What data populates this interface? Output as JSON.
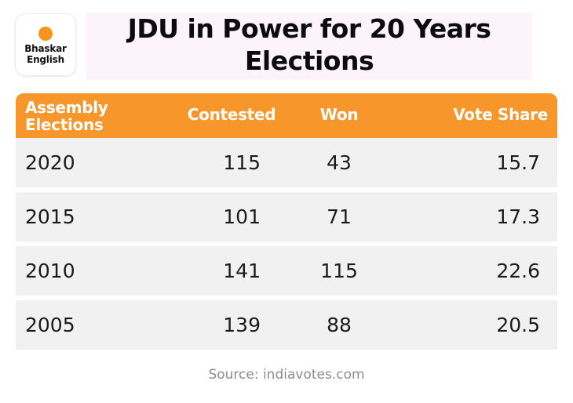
{
  "logo": {
    "line1": "Bhaskar",
    "line2": "English"
  },
  "title": {
    "line1": "JDU in Power for 20 Years",
    "line2": "Elections"
  },
  "chart_data": {
    "type": "table",
    "title": "JDU in Power for 20 Years Elections",
    "columns": {
      "elections_line1": "Assembly",
      "elections_line2": "Elections",
      "contested": "Contested",
      "won": "Won",
      "vote_share": "Vote Share"
    },
    "rows": [
      {
        "year": "2020",
        "contested": "115",
        "won": "43",
        "vote_share": "15.7"
      },
      {
        "year": "2015",
        "contested": "101",
        "won": "71",
        "vote_share": "17.3"
      },
      {
        "year": "2010",
        "contested": "141",
        "won": "115",
        "vote_share": "22.6"
      },
      {
        "year": "2005",
        "contested": "139",
        "won": "88",
        "vote_share": "20.5"
      }
    ]
  },
  "source": "Source: indiavotes.com",
  "colors": {
    "header_bg": "#f7962b",
    "row_bg": "#f1f1f1",
    "logo_dot": "#f7941d",
    "title_bg": "#fdf4fb"
  }
}
